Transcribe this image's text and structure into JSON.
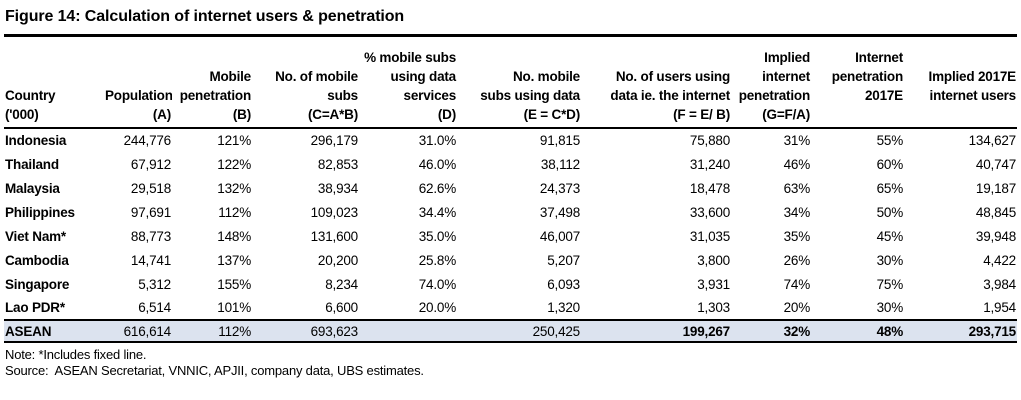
{
  "figure": {
    "title": "Figure 14: Calculation of internet users & penetration"
  },
  "table": {
    "columns": [
      {
        "id": "country",
        "lines": [
          "Country"
        ],
        "formula": "('000)"
      },
      {
        "id": "population",
        "lines": [
          "Population"
        ],
        "formula": "(A)"
      },
      {
        "id": "mobile-penetration",
        "lines": [
          "Mobile",
          "penetration"
        ],
        "formula": "(B)"
      },
      {
        "id": "mobile-subs",
        "lines": [
          "No. of mobile",
          "subs"
        ],
        "formula": "(C=A*B)"
      },
      {
        "id": "pct-subs-data",
        "lines": [
          "% mobile subs",
          "using data",
          "services"
        ],
        "formula": "(D)"
      },
      {
        "id": "subs-using-data",
        "lines": [
          "No. mobile",
          "subs using data"
        ],
        "formula": "(E = C*D)"
      },
      {
        "id": "users-using-data",
        "lines": [
          "No. of users using",
          "data ie. the internet"
        ],
        "formula": "(F = E/ B)"
      },
      {
        "id": "implied-penetration",
        "lines": [
          "Implied internet",
          "penetration"
        ],
        "formula": "(G=F/A)"
      },
      {
        "id": "penetration-2017e",
        "lines": [
          "Internet",
          "penetration",
          "2017E"
        ],
        "formula": ""
      },
      {
        "id": "implied-2017e-users",
        "lines": [
          "Implied 2017E",
          "internet users"
        ],
        "formula": ""
      }
    ],
    "rows": [
      {
        "country": "Indonesia",
        "values": [
          "244,776",
          "121%",
          "296,179",
          "31.0%",
          "91,815",
          "75,880",
          "31%",
          "55%",
          "134,627"
        ]
      },
      {
        "country": "Thailand",
        "values": [
          "67,912",
          "122%",
          "82,853",
          "46.0%",
          "38,112",
          "31,240",
          "46%",
          "60%",
          "40,747"
        ]
      },
      {
        "country": "Malaysia",
        "values": [
          "29,518",
          "132%",
          "38,934",
          "62.6%",
          "24,373",
          "18,478",
          "63%",
          "65%",
          "19,187"
        ]
      },
      {
        "country": "Philippines",
        "values": [
          "97,691",
          "112%",
          "109,023",
          "34.4%",
          "37,498",
          "33,600",
          "34%",
          "50%",
          "48,845"
        ]
      },
      {
        "country": "Viet Nam*",
        "values": [
          "88,773",
          "148%",
          "131,600",
          "35.0%",
          "46,007",
          "31,035",
          "35%",
          "45%",
          "39,948"
        ]
      },
      {
        "country": "Cambodia",
        "values": [
          "14,741",
          "137%",
          "20,200",
          "25.8%",
          "5,207",
          "3,800",
          "26%",
          "30%",
          "4,422"
        ]
      },
      {
        "country": "Singapore",
        "values": [
          "5,312",
          "155%",
          "8,234",
          "74.0%",
          "6,093",
          "3,931",
          "74%",
          "75%",
          "3,984"
        ]
      },
      {
        "country": "Lao PDR*",
        "values": [
          "6,514",
          "101%",
          "6,600",
          "20.0%",
          "1,320",
          "1,303",
          "20%",
          "30%",
          "1,954"
        ]
      }
    ],
    "total_row": {
      "country": "ASEAN",
      "values": [
        "616,614",
        "112%",
        "693,623",
        "",
        "250,425",
        "199,267",
        "32%",
        "48%",
        "293,715"
      ],
      "bold_value_indices": [
        5,
        6,
        7,
        8
      ]
    }
  },
  "notes": {
    "note": "Note: *Includes fixed line.",
    "source": "Source:  ASEAN Secretariat, VNNIC, APJII, company data, UBS estimates."
  }
}
